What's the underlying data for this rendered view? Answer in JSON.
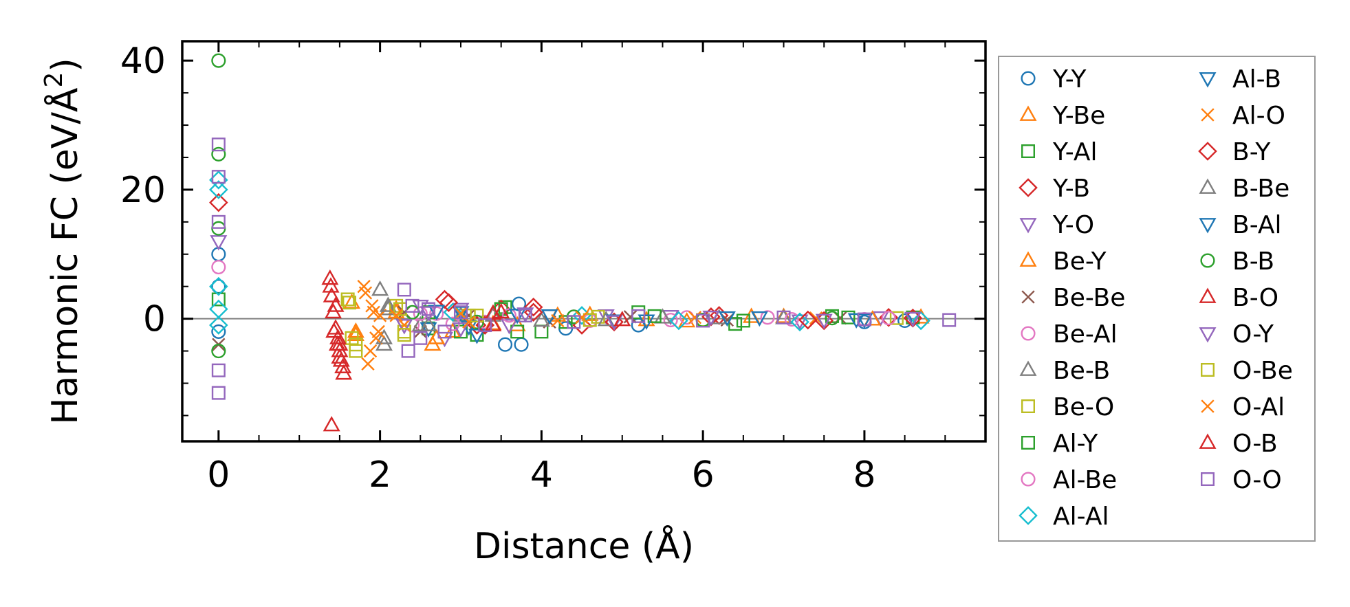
{
  "chart_data": {
    "type": "scatter",
    "title": "",
    "xlabel": "Distance (Å)",
    "ylabel_main": "Harmonic FC (eV/Å",
    "ylabel_sup": "2",
    "ylabel_close": ")",
    "xlim": [
      -0.45,
      9.5
    ],
    "ylim": [
      -19,
      43
    ],
    "xticks": [
      0,
      2,
      4,
      6,
      8
    ],
    "xtick_labels": [
      "0",
      "2",
      "4",
      "6",
      "8"
    ],
    "yticks": [
      0,
      20,
      40
    ],
    "ytick_labels": [
      "0",
      "20",
      "40"
    ],
    "zero_line": true,
    "grid": false,
    "legend_placement": "outside-right",
    "legend_columns": 2,
    "series": [
      {
        "name": "Y-Y",
        "marker": "circle",
        "color": "#1f77b4",
        "x": [
          0,
          0,
          0,
          3.72,
          3.55,
          3.75,
          4.3,
          5.2,
          8.0,
          8.5
        ],
        "y": [
          10,
          5,
          -2,
          2.3,
          -4,
          -4,
          -1.5,
          -1,
          -0.5,
          -0.3
        ]
      },
      {
        "name": "Y-Be",
        "marker": "tri-up",
        "color": "#ff7f0e",
        "x": [
          1.65,
          1.7,
          2.2,
          2.65,
          2.9,
          3.7,
          4.6,
          5.8,
          7.0,
          8.7
        ],
        "y": [
          2.5,
          -2.5,
          1.5,
          -4,
          -2,
          -1,
          0.6,
          -0.4,
          0.3,
          0.2
        ]
      },
      {
        "name": "Y-Al",
        "marker": "square",
        "color": "#2ca02c",
        "x": [
          0,
          2.6,
          3.2,
          3.55,
          3.7,
          4.0,
          5.2,
          6.4,
          7.6,
          8.6
        ],
        "y": [
          3,
          -1.5,
          -2.5,
          1.8,
          -2,
          -2,
          1,
          -0.8,
          0.4,
          0.2
        ]
      },
      {
        "name": "Y-B",
        "marker": "diamond",
        "color": "#d62728",
        "x": [
          0,
          2.8,
          3.2,
          3.5,
          3.9,
          4.5,
          6.2,
          7.5,
          8.3
        ],
        "y": [
          18,
          3,
          -1,
          1.5,
          1.8,
          -1,
          0.5,
          -0.3,
          0.2
        ]
      },
      {
        "name": "Y-O",
        "marker": "tri-down",
        "color": "#9467bd",
        "x": [
          0,
          2.3,
          2.5,
          2.8,
          3.0,
          3.6,
          4.8,
          5.6,
          7.2,
          8.2
        ],
        "y": [
          12,
          -1,
          2,
          -3,
          1.5,
          -1,
          0.5,
          0.4,
          -0.3,
          0.2
        ]
      },
      {
        "name": "Be-Y",
        "marker": "tri-up",
        "color": "#ff7f0e",
        "x": [
          1.7,
          2.2,
          2.7,
          3.4,
          4.2,
          5.3,
          6.6,
          8.1
        ],
        "y": [
          -2,
          1,
          -3,
          -0.8,
          0.5,
          -0.2,
          0.3,
          -0.1
        ]
      },
      {
        "name": "Be-Be",
        "marker": "x",
        "color": "#8c564b",
        "x": [
          0,
          2.3,
          2.5,
          3.1,
          4.1,
          5.1,
          6.3,
          7.7
        ],
        "y": [
          -4,
          1,
          -2,
          0.5,
          -0.5,
          0.3,
          -0.2,
          0.1
        ]
      },
      {
        "name": "Be-Al",
        "marker": "circle",
        "color": "#e377c2",
        "x": [
          0,
          2.4,
          2.7,
          3.3,
          4.4,
          5.6,
          6.8,
          8.0
        ],
        "y": [
          8,
          -1,
          0.8,
          -0.5,
          0.3,
          -0.2,
          0.2,
          -0.1
        ]
      },
      {
        "name": "Be-B",
        "marker": "tri-up",
        "color": "#7f7f7f",
        "x": [
          2.0,
          2.05,
          2.1,
          2.5,
          3.0,
          4.0,
          5.5,
          7.0
        ],
        "y": [
          4.5,
          -3,
          1.5,
          -1,
          0.5,
          -0.3,
          0.2,
          0.1
        ]
      },
      {
        "name": "Be-O",
        "marker": "square",
        "color": "#bcbd22",
        "x": [
          1.6,
          1.65,
          1.7,
          2.2,
          2.3,
          3.1,
          4.7,
          6.0,
          8.4
        ],
        "y": [
          3,
          -3,
          -5,
          2,
          -2,
          0.5,
          0.3,
          -0.2,
          0.1
        ]
      },
      {
        "name": "Al-Y",
        "marker": "square",
        "color": "#2ca02c",
        "x": [
          2.6,
          3.0,
          3.5,
          4.3,
          5.4,
          6.5,
          7.8
        ],
        "y": [
          1,
          -2,
          1.5,
          -0.5,
          0.4,
          -0.3,
          0.2
        ]
      },
      {
        "name": "Al-Be",
        "marker": "circle",
        "color": "#e377c2",
        "x": [
          2.5,
          2.9,
          3.6,
          4.6,
          5.8,
          7.1,
          8.3
        ],
        "y": [
          0.8,
          -0.8,
          0.5,
          -0.3,
          0.2,
          -0.1,
          0.1
        ]
      },
      {
        "name": "Al-Al",
        "marker": "diamond",
        "color": "#17becf",
        "x": [
          0,
          0,
          0,
          0,
          0,
          2.9,
          3.3,
          4.5,
          5.7,
          7.2,
          8.7
        ],
        "y": [
          21.5,
          20,
          1.5,
          -1,
          5,
          1,
          -1,
          0.5,
          -0.3,
          -0.5,
          -0.3
        ]
      },
      {
        "name": "Al-B",
        "marker": "tri-down",
        "color": "#1f77b4",
        "x": [
          2.6,
          3.0,
          3.2,
          4.1,
          5.3,
          6.7,
          8.0
        ],
        "y": [
          -1.5,
          1,
          -2.5,
          0.5,
          -0.3,
          0.2,
          -0.1
        ]
      },
      {
        "name": "Al-O",
        "marker": "x",
        "color": "#ff7f0e",
        "x": [
          1.8,
          1.85,
          1.9,
          1.95,
          2.0,
          2.3,
          3.0,
          4.2,
          5.9,
          7.4
        ],
        "y": [
          5,
          -7,
          2,
          -3,
          0.5,
          -1,
          0.8,
          -0.3,
          0.2,
          0.1
        ]
      },
      {
        "name": "B-Y",
        "marker": "diamond",
        "color": "#d62728",
        "x": [
          2.85,
          3.3,
          3.9,
          4.9,
          6.1,
          7.3,
          8.6
        ],
        "y": [
          2.5,
          -1,
          1,
          -0.5,
          0.3,
          -0.2,
          0.1
        ]
      },
      {
        "name": "B-Be",
        "marker": "tri-up",
        "color": "#7f7f7f",
        "x": [
          2.05,
          2.1,
          2.6,
          3.4,
          4.8,
          6.2
        ],
        "y": [
          -4,
          2,
          -1,
          0.5,
          -0.2,
          0.1
        ]
      },
      {
        "name": "B-Al",
        "marker": "tri-down",
        "color": "#1f77b4",
        "x": [
          2.7,
          3.1,
          3.7,
          4.9,
          6.3,
          7.9
        ],
        "y": [
          1.2,
          -1.2,
          0.6,
          -0.3,
          0.2,
          -0.1
        ]
      },
      {
        "name": "B-B",
        "marker": "circle",
        "color": "#2ca02c",
        "x": [
          0,
          0,
          0,
          0,
          2.4,
          3.2,
          4.4,
          6.0,
          7.6
        ],
        "y": [
          40,
          25.5,
          14,
          -5,
          1,
          -0.5,
          0.3,
          -0.2,
          0.1
        ]
      },
      {
        "name": "B-O",
        "marker": "tri-up",
        "color": "#d62728",
        "x": [
          1.38,
          1.4,
          1.42,
          1.45,
          1.48,
          1.5,
          1.52,
          1.55,
          1.4,
          1.45,
          1.5,
          3.4,
          3.5
        ],
        "y": [
          6.2,
          3.5,
          1,
          -1.5,
          -3,
          -5,
          -6.5,
          -8.5,
          -16.5,
          2,
          -4,
          -1,
          1
        ]
      },
      {
        "name": "O-Y",
        "marker": "tri-down",
        "color": "#9467bd",
        "x": [
          2.3,
          2.6,
          3.0,
          3.8,
          4.9,
          6.1,
          7.5,
          8.6
        ],
        "y": [
          -1,
          1,
          -1.5,
          0.8,
          -0.4,
          0.3,
          -0.2,
          0.1
        ]
      },
      {
        "name": "O-Be",
        "marker": "square",
        "color": "#bcbd22",
        "x": [
          1.62,
          1.7,
          2.25,
          2.3,
          3.2,
          4.6
        ],
        "y": [
          2.5,
          -4,
          1.5,
          -2.5,
          0.5,
          -0.2
        ]
      },
      {
        "name": "O-Al",
        "marker": "x",
        "color": "#ff7f0e",
        "x": [
          1.82,
          1.88,
          1.92,
          1.98,
          2.2,
          3.1,
          4.5
        ],
        "y": [
          4,
          -5,
          1,
          -2,
          0.5,
          -0.5,
          0.2
        ]
      },
      {
        "name": "O-B",
        "marker": "tri-up",
        "color": "#d62728",
        "x": [
          1.39,
          1.43,
          1.47,
          1.5,
          1.54,
          3.4,
          5.0
        ],
        "y": [
          5,
          -2,
          -4,
          -6,
          -7.5,
          0.8,
          -0.2
        ]
      },
      {
        "name": "O-O",
        "marker": "square",
        "color": "#9467bd",
        "x": [
          0,
          0,
          0,
          0,
          0,
          2.3,
          2.35,
          2.4,
          2.5,
          2.6,
          2.8,
          3.0,
          3.3,
          3.8,
          4.4,
          5.2,
          6.0,
          7.0,
          8.0,
          9.05
        ],
        "y": [
          27,
          22,
          15,
          -8,
          -11.5,
          4.5,
          -5,
          2,
          -3,
          1.5,
          -2,
          1,
          -1,
          0.5,
          -0.5,
          0.4,
          -0.3,
          0.2,
          -0.1,
          -0.2
        ]
      }
    ]
  }
}
